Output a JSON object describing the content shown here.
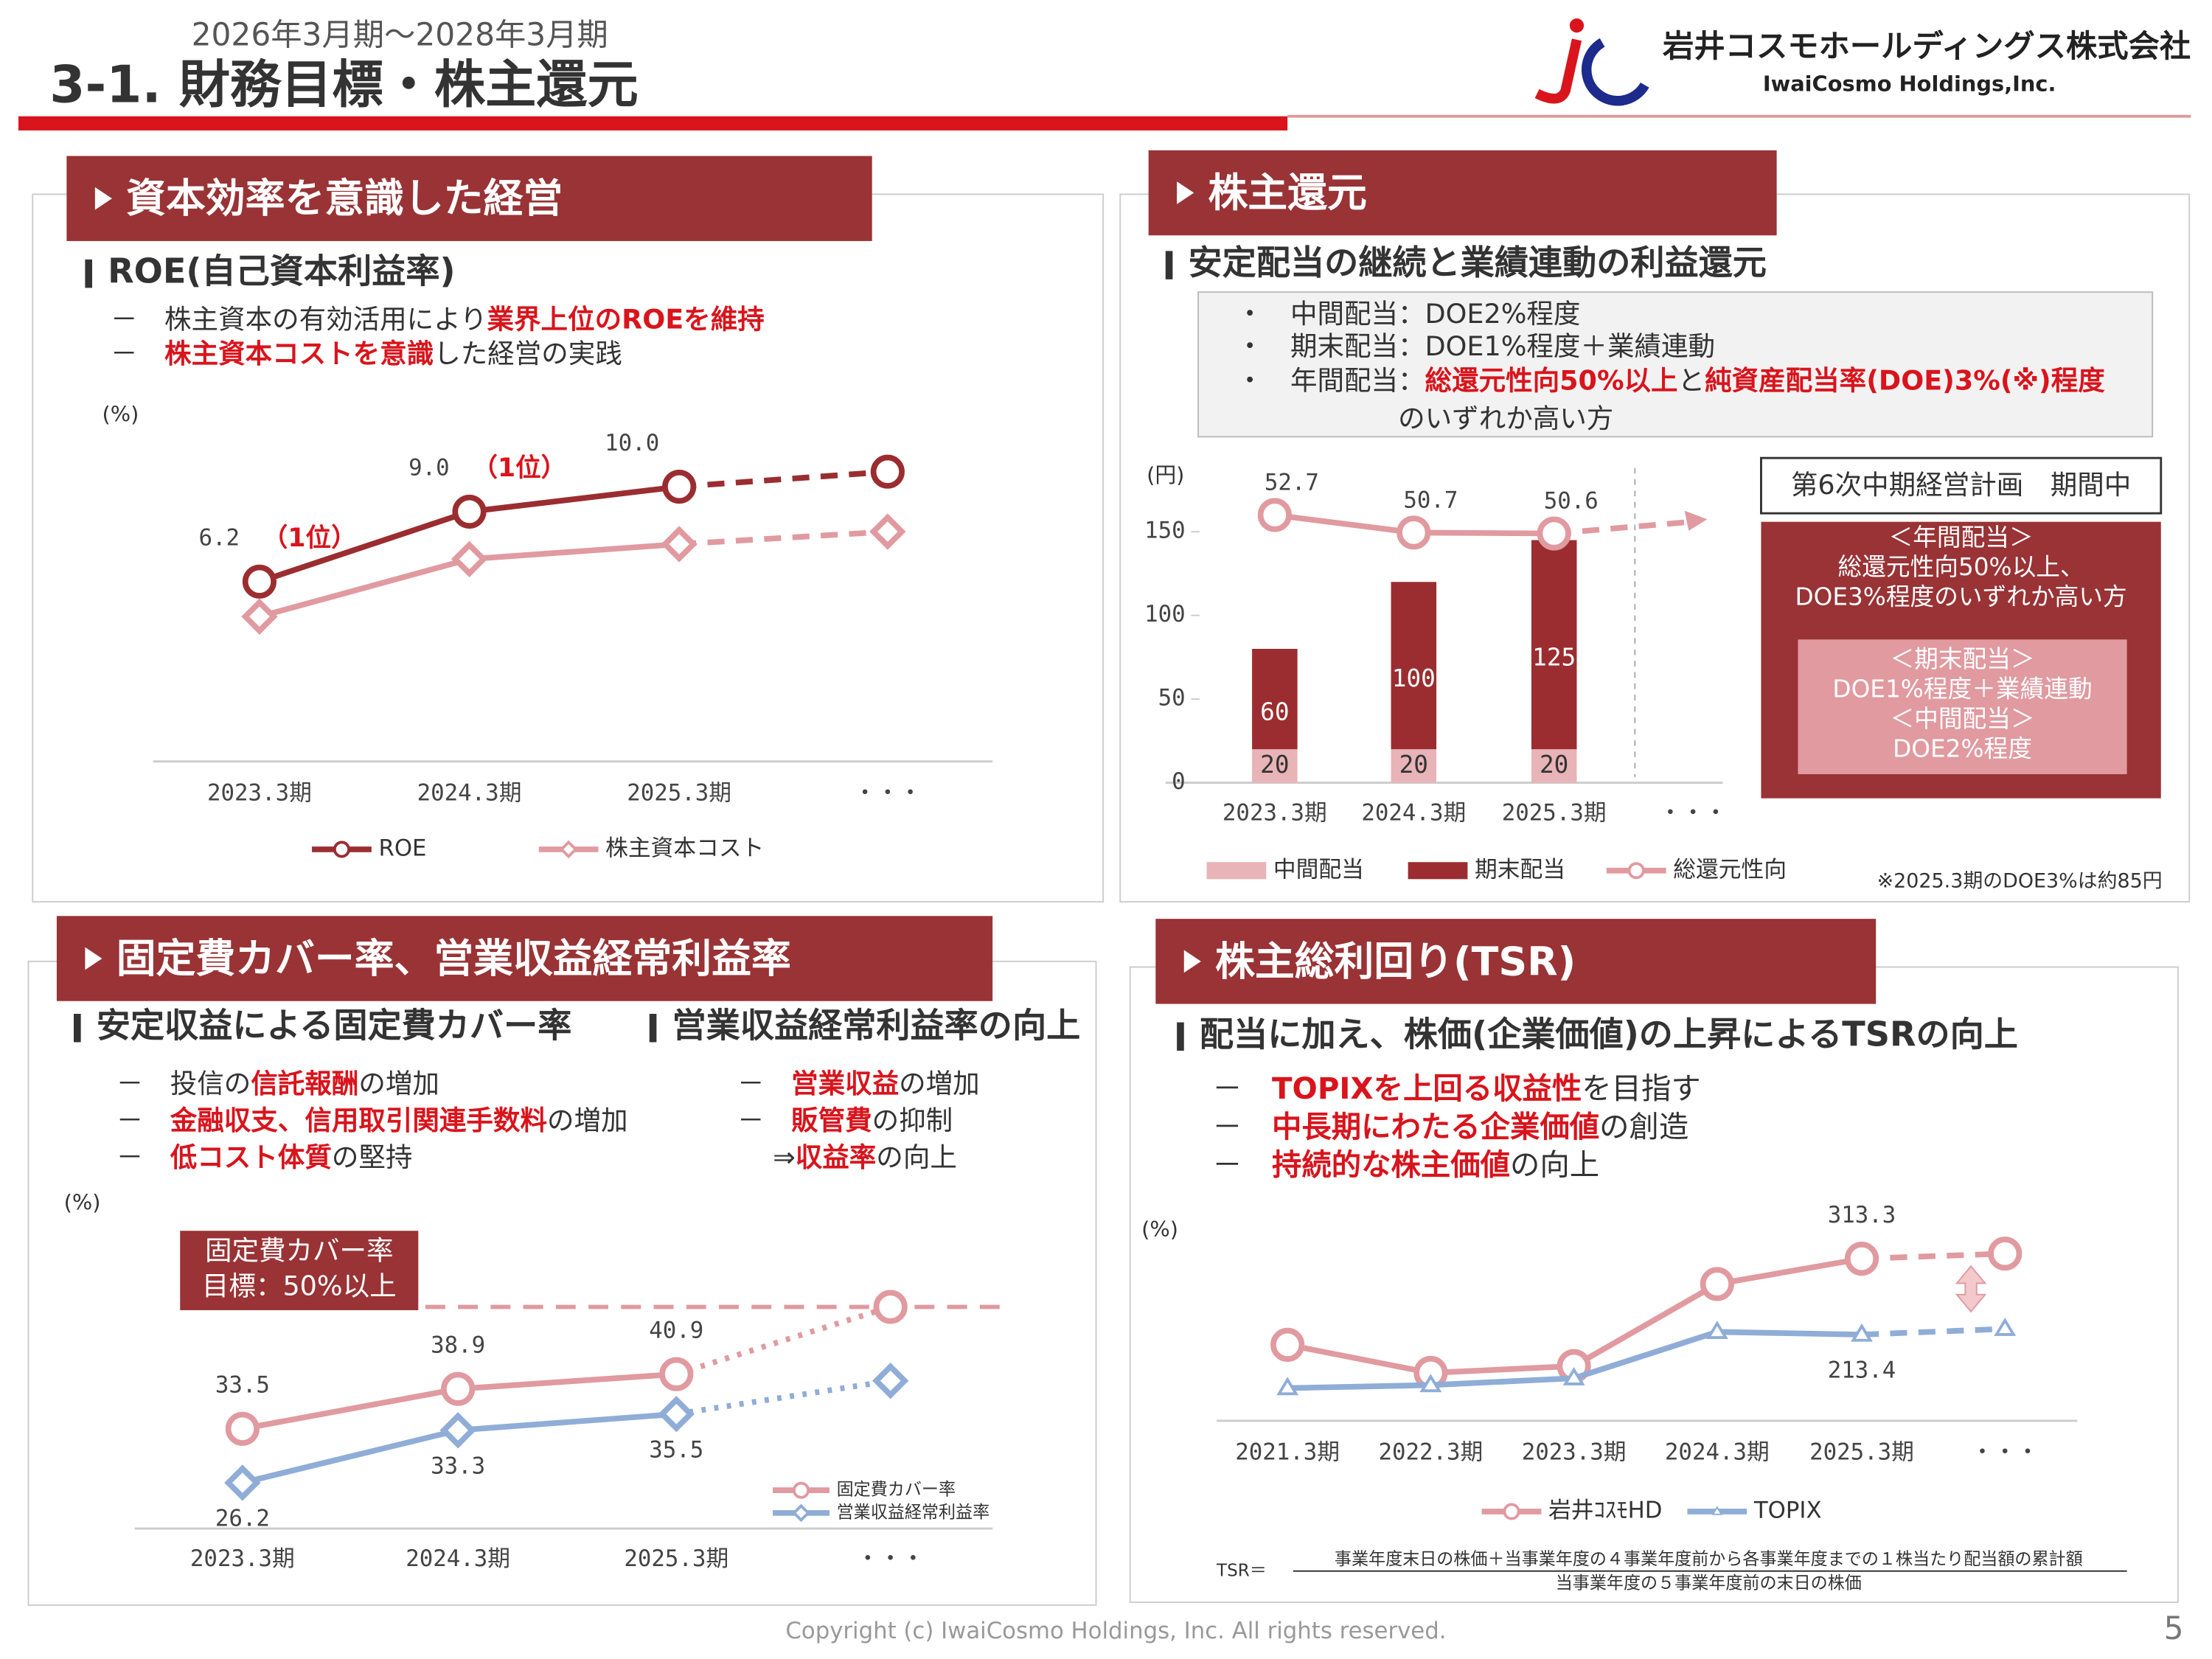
{
  "header": {
    "period": "2026年3月期～2028年3月期",
    "title": "3-1. 財務目標・株主還元",
    "company": "岩井コスモホールディングス株式会社",
    "company_en": "IwaiCosmo Holdings,Inc."
  },
  "footer": {
    "copyright": "Copyright (c) IwaiCosmo Holdings, Inc. All rights reserved.",
    "page": "5"
  },
  "panels": [
    {
      "title": "資本効率を意識した経営",
      "heading": "ROE(自己資本利益率)",
      "items": [
        [
          {
            "t": "－　株主資本の有効活用により"
          },
          {
            "t": "業界上位のROEを維持",
            "em": true
          }
        ],
        [
          {
            "t": "－　"
          },
          {
            "t": "株主資本コストを意識",
            "em": true
          },
          {
            "t": "した経営の実践"
          }
        ]
      ]
    },
    {
      "title": "株主還元",
      "heading": "安定配当の継続と業績連動の利益還元",
      "box": [
        [
          {
            "t": "・　中間配当：DOE2%程度"
          }
        ],
        [
          {
            "t": "・　期末配当：DOE1%程度＋業績連動"
          }
        ],
        [
          {
            "t": "・　年間配当："
          },
          {
            "t": "総還元性向50%以上",
            "em": true
          },
          {
            "t": "と"
          },
          {
            "t": "純資産配当率(DOE)3%(※)程度",
            "em": true
          }
        ],
        [
          {
            "t": "のいずれか高い方"
          }
        ]
      ],
      "plan_title": "第6次中期経営計画　期間中",
      "plan_annual": [
        "＜年間配当＞",
        "総還元性向50%以上、",
        "DOE3%程度のいずれか高い方"
      ],
      "plan_detail": [
        "＜期末配当＞",
        "DOE1%程度＋業績連動",
        "＜中間配当＞",
        "DOE2%程度"
      ],
      "note": "※2025.3期のDOE3%は約85円"
    },
    {
      "title": "固定費カバー率、営業収益経常利益率",
      "headings": [
        "安定収益による固定費カバー率",
        "営業収益経常利益率の向上"
      ],
      "items_left": [
        [
          {
            "t": "－　投信の"
          },
          {
            "t": "信託報酬",
            "em": true
          },
          {
            "t": "の増加"
          }
        ],
        [
          {
            "t": "－　"
          },
          {
            "t": "金融収支、信用取引関連手数料",
            "em": true
          },
          {
            "t": "の増加"
          }
        ],
        [
          {
            "t": "－　"
          },
          {
            "t": "低コスト体質",
            "em": true
          },
          {
            "t": "の堅持"
          }
        ]
      ],
      "items_right": [
        [
          {
            "t": "－　"
          },
          {
            "t": "営業収益",
            "em": true
          },
          {
            "t": "の増加"
          }
        ],
        [
          {
            "t": "－　"
          },
          {
            "t": "販管費",
            "em": true
          },
          {
            "t": "の抑制"
          }
        ],
        [
          {
            "t": "　 ⇒"
          },
          {
            "t": "収益率",
            "em": true
          },
          {
            "t": "の向上"
          }
        ]
      ],
      "target_label": [
        "固定費カバー率",
        "目標：50%以上"
      ]
    },
    {
      "title": "株主総利回り(TSR)",
      "heading": "配当に加え、株価(企業価値)の上昇によるTSRの向上",
      "items": [
        [
          {
            "t": "－　"
          },
          {
            "t": "TOPIXを上回る収益性",
            "em": true
          },
          {
            "t": "を目指す"
          }
        ],
        [
          {
            "t": "－　"
          },
          {
            "t": "中長期にわたる企業価値",
            "em": true
          },
          {
            "t": "の創造"
          }
        ],
        [
          {
            "t": "－　"
          },
          {
            "t": "持続的な株主価値",
            "em": true
          },
          {
            "t": "の向上"
          }
        ]
      ],
      "formula_lhs": "TSR＝",
      "formula_num": "事業年度末日の株価＋当事業年度の４事業年度前から各事業年度までの１株当たり配当額の累計額",
      "formula_den": "当事業年度の５事業年度前の末日の株価"
    }
  ],
  "chart_data": [
    {
      "type": "line",
      "y_label": "(%)",
      "categories": [
        "2023.3期",
        "2024.3期",
        "2025.3期",
        "・・・"
      ],
      "ylim": [
        -1,
        12
      ],
      "dashed_last": true,
      "series": [
        {
          "name": "ROE",
          "color": "#9b2d30",
          "marker": "circle",
          "values": [
            6.2,
            9.0,
            10.0,
            10.6
          ],
          "value_labels": [
            "6.2",
            "9.0",
            "10.0",
            null
          ],
          "annotations": [
            "（1位）",
            "（1位）",
            null,
            null
          ]
        },
        {
          "name": "株主資本コスト",
          "color": "#e09aa0",
          "marker": "diamond",
          "values": [
            4.8,
            7.1,
            7.7,
            8.2
          ]
        }
      ]
    },
    {
      "type": "bar_line",
      "y_label": "(円)",
      "categories": [
        "2023.3期",
        "2024.3期",
        "2025.3期",
        "・・・"
      ],
      "ylim": [
        0,
        150
      ],
      "yticks": [
        0,
        50,
        100,
        150
      ],
      "y2lim": [
        22.3,
        50.8
      ],
      "series": [
        {
          "name": "中間配当",
          "color": "#e8b4b8",
          "values": [
            20,
            20,
            20,
            null
          ]
        },
        {
          "name": "期末配当",
          "color": "#9b2d30",
          "values": [
            60,
            100,
            125,
            null
          ]
        },
        {
          "name": "総還元性向",
          "color": "#e09aa0",
          "axis": "y2",
          "values": [
            52.7,
            50.7,
            50.6,
            null
          ],
          "value_labels": [
            "52.7",
            "50.7",
            "50.6",
            null
          ]
        }
      ]
    },
    {
      "type": "line",
      "y_label": "(%)",
      "categories": [
        "2023.3期",
        "2024.3期",
        "2025.3期",
        "・・・"
      ],
      "ylim": [
        20,
        58
      ],
      "target": 50,
      "dashed_last": true,
      "series": [
        {
          "name": "固定費カバー率",
          "color": "#e09aa0",
          "marker": "circle",
          "values": [
            33.5,
            38.9,
            40.9,
            50
          ],
          "value_labels": [
            "33.5",
            "38.9",
            "40.9",
            null
          ]
        },
        {
          "name": "営業収益経常利益率",
          "color": "#8fadd6",
          "marker": "diamond",
          "values": [
            26.2,
            33.3,
            35.5,
            40.0
          ],
          "value_labels": [
            "26.2",
            "33.3",
            "35.5",
            null
          ]
        }
      ]
    },
    {
      "type": "line",
      "y_label": "(%)",
      "categories": [
        "2021.3期",
        "2022.3期",
        "2023.3期",
        "2024.3期",
        "2025.3期",
        "・・・"
      ],
      "ylim": [
        100,
        365
      ],
      "dashed_last": true,
      "series": [
        {
          "name": "岩井ｺｽﾓHD",
          "color": "#e09aa0",
          "marker": "circle",
          "values": [
            200,
            163,
            172,
            280,
            313.3,
            320
          ],
          "value_labels": [
            null,
            null,
            null,
            null,
            "313.3",
            null
          ]
        },
        {
          "name": "TOPIX",
          "color": "#8fadd6",
          "marker": "triangle",
          "values": [
            143,
            147,
            156,
            217,
            213.4,
            221
          ],
          "value_labels": [
            null,
            null,
            null,
            null,
            "213.4",
            null
          ]
        }
      ]
    }
  ]
}
